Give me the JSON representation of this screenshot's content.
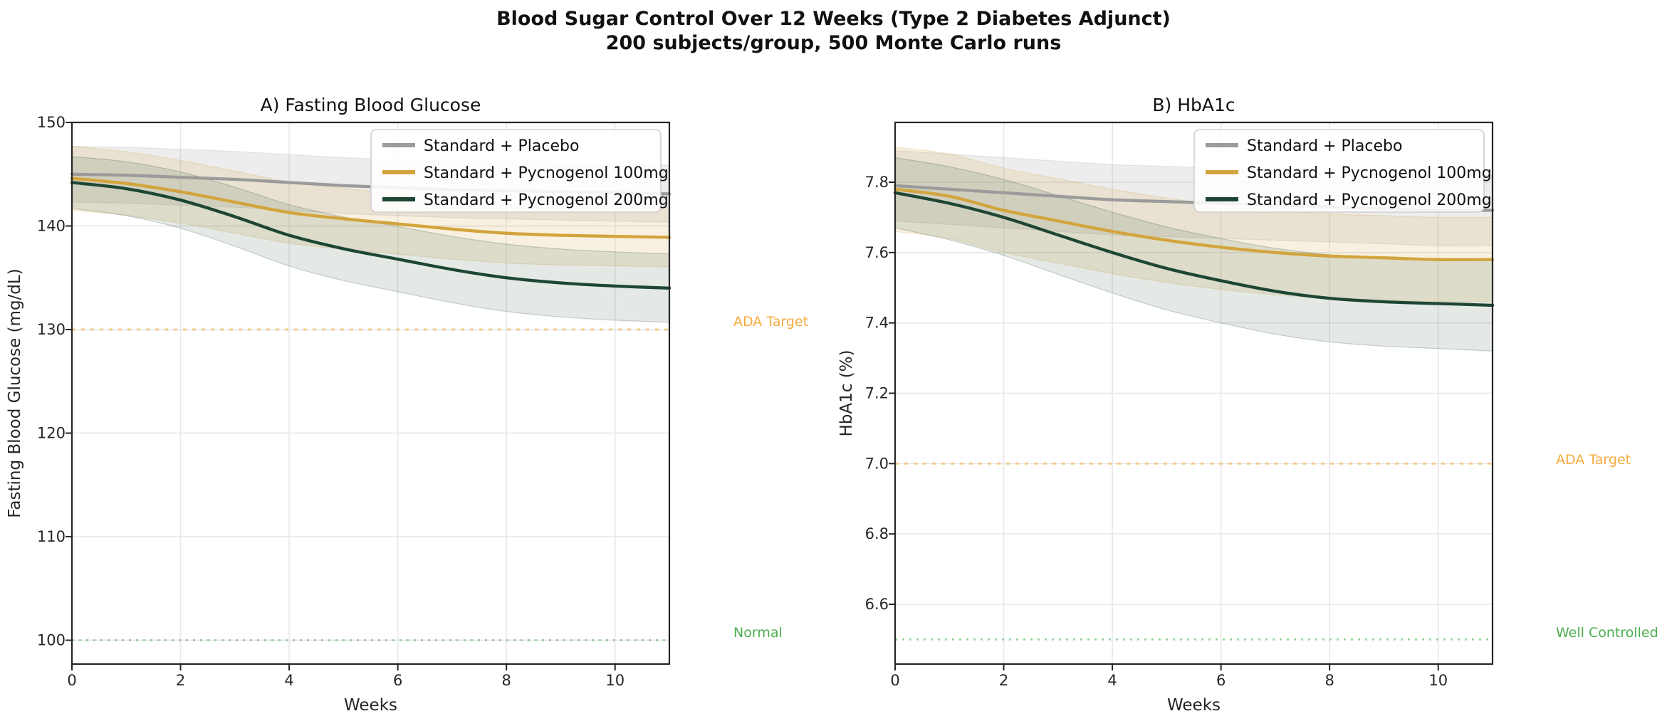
{
  "figure": {
    "title_line1": "Blood Sugar Control Over 12 Weeks (Type 2 Diabetes Adjunct)",
    "title_line2": "200 subjects/group, 500 Monte Carlo runs",
    "background": "#ffffff",
    "accent_colors": {
      "placebo": "#9b9b9b",
      "pycnogenol_100": "#d2a43c",
      "pycnogenol_200": "#1d4634",
      "ada_target": "#f6ab3e",
      "normal": "#4caf50"
    }
  },
  "chart_data": [
    {
      "type": "line",
      "panel": "A",
      "title": "A) Fasting Blood Glucose",
      "xlabel": "Weeks",
      "ylabel": "Fasting Blood Glucose (mg/dL)",
      "x": [
        0,
        1,
        2,
        3,
        4,
        5,
        6,
        7,
        8,
        9,
        10,
        11
      ],
      "xlim": [
        0,
        11
      ],
      "ylim": [
        97.7,
        150.0
      ],
      "xticks": [
        0,
        2,
        4,
        6,
        8,
        10
      ],
      "xticklabels": [
        "0",
        "2",
        "4",
        "6",
        "8",
        "10"
      ],
      "yticks": [
        100,
        110,
        120,
        130,
        140,
        150
      ],
      "yticklabels": [
        "100",
        "110",
        "120",
        "130",
        "140",
        "150"
      ],
      "grid": true,
      "legend_position": "upper right",
      "series": [
        {
          "name": "Standard + Placebo",
          "color": "#9b9b9b",
          "band_alpha": 0.18,
          "values": [
            145.0,
            144.9,
            144.7,
            144.5,
            144.2,
            143.9,
            143.7,
            143.5,
            143.4,
            143.3,
            143.2,
            143.1
          ],
          "band": [
            2.7,
            2.7,
            2.7,
            2.7,
            2.7,
            2.7,
            2.7,
            2.7,
            2.72,
            2.73,
            2.74,
            2.75
          ]
        },
        {
          "name": "Standard + Pycnogenol 100mg",
          "color": "#d2a43c",
          "band_alpha": 0.16,
          "values": [
            144.6,
            144.1,
            143.3,
            142.3,
            141.3,
            140.7,
            140.2,
            139.7,
            139.3,
            139.1,
            139.0,
            138.9
          ],
          "band": [
            3.1,
            3.07,
            3.04,
            3.0,
            2.97,
            2.95,
            2.93,
            2.9,
            2.88,
            2.87,
            2.86,
            2.85
          ]
        },
        {
          "name": "Standard + Pycnogenol 200mg",
          "color": "#1d4634",
          "band_alpha": 0.12,
          "values": [
            144.2,
            143.6,
            142.5,
            140.9,
            139.1,
            137.8,
            136.8,
            135.8,
            135.0,
            134.5,
            134.2,
            134.0
          ],
          "band": [
            2.5,
            2.6,
            2.72,
            2.85,
            2.97,
            3.07,
            3.15,
            3.2,
            3.25,
            3.28,
            3.3,
            3.3
          ]
        }
      ],
      "reference_lines": [
        {
          "label": "ADA Target",
          "value": 130,
          "color": "#f6ab3e",
          "style": "dashed"
        },
        {
          "label": "Normal",
          "value": 100,
          "color": "#4caf50",
          "style": "dotted"
        }
      ]
    },
    {
      "type": "line",
      "panel": "B",
      "title": "B) HbA1c",
      "xlabel": "Weeks",
      "ylabel": "HbA1c (%)",
      "x": [
        0,
        1,
        2,
        3,
        4,
        5,
        6,
        7,
        8,
        9,
        10,
        11
      ],
      "xlim": [
        0,
        11
      ],
      "ylim": [
        6.43,
        7.97
      ],
      "xticks": [
        0,
        2,
        4,
        6,
        8,
        10
      ],
      "xticklabels": [
        "0",
        "2",
        "4",
        "6",
        "8",
        "10"
      ],
      "yticks": [
        6.6,
        6.8,
        7.0,
        7.2,
        7.4,
        7.6,
        7.8
      ],
      "yticklabels": [
        "6.6",
        "6.8",
        "7.0",
        "7.2",
        "7.4",
        "7.6",
        "7.8"
      ],
      "grid": true,
      "legend_position": "upper right",
      "series": [
        {
          "name": "Standard + Placebo",
          "color": "#9b9b9b",
          "band_alpha": 0.18,
          "values": [
            7.79,
            7.78,
            7.77,
            7.76,
            7.75,
            7.745,
            7.74,
            7.735,
            7.73,
            7.725,
            7.72,
            7.72
          ],
          "band": [
            0.1,
            0.1,
            0.1,
            0.1,
            0.1,
            0.1,
            0.1,
            0.1,
            0.1,
            0.1,
            0.1,
            0.1
          ]
        },
        {
          "name": "Standard + Pycnogenol 100mg",
          "color": "#d2a43c",
          "band_alpha": 0.16,
          "values": [
            7.78,
            7.76,
            7.72,
            7.69,
            7.66,
            7.635,
            7.615,
            7.6,
            7.59,
            7.585,
            7.58,
            7.58
          ],
          "band": [
            0.12,
            0.12,
            0.12,
            0.12,
            0.12,
            0.12,
            0.12,
            0.12,
            0.12,
            0.12,
            0.12,
            0.12
          ]
        },
        {
          "name": "Standard + Pycnogenol 200mg",
          "color": "#1d4634",
          "band_alpha": 0.12,
          "values": [
            7.77,
            7.74,
            7.7,
            7.65,
            7.6,
            7.555,
            7.52,
            7.49,
            7.47,
            7.46,
            7.455,
            7.45
          ],
          "band": [
            0.1,
            0.104,
            0.108,
            0.112,
            0.115,
            0.118,
            0.12,
            0.122,
            0.124,
            0.126,
            0.128,
            0.13
          ]
        }
      ],
      "reference_lines": [
        {
          "label": "ADA Target",
          "value": 7.0,
          "color": "#f6ab3e",
          "style": "dashed"
        },
        {
          "label": "Well Controlled",
          "value": 6.5,
          "color": "#4caf50",
          "style": "dotted"
        }
      ]
    }
  ]
}
